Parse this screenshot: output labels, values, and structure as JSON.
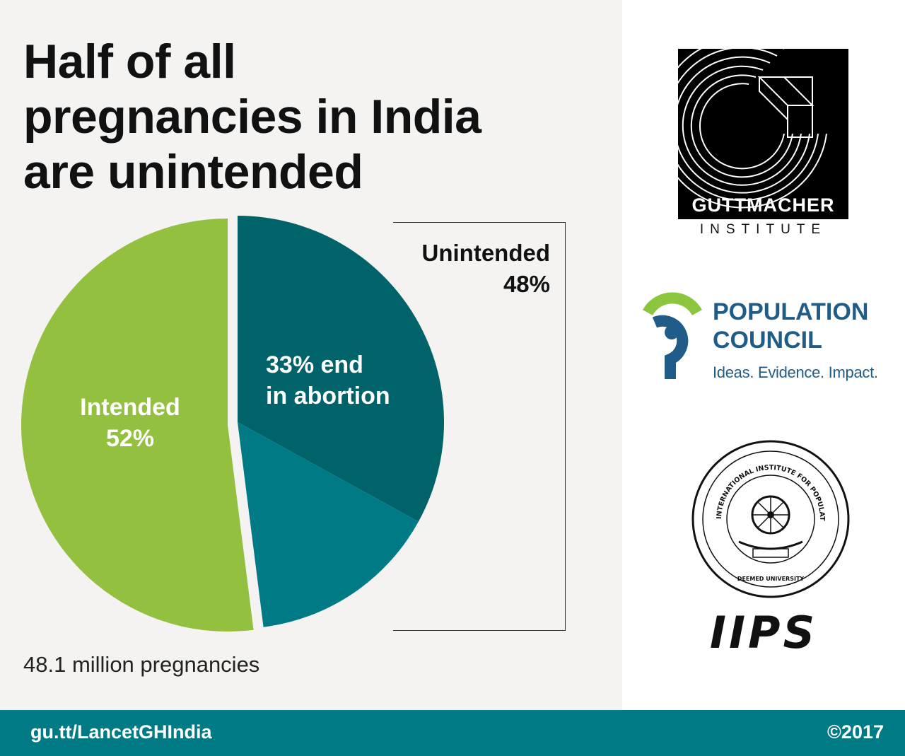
{
  "title_lines": [
    "Half of all",
    "pregnancies in India",
    "are unintended"
  ],
  "chart_data": {
    "type": "pie",
    "slices": [
      {
        "label": "Intended",
        "value": 52,
        "color": "#93c03f"
      },
      {
        "label": "Unintended, ending in abortion",
        "value": 33,
        "color": "#00636a"
      },
      {
        "label": "Unintended, other",
        "value": 15,
        "color": "#007b86"
      }
    ],
    "unintended_total": 48,
    "total_label": "48.1 million pregnancies"
  },
  "labels": {
    "unintended": "Unintended",
    "unintended_pct": "48%",
    "abortion_line1": "33% end",
    "abortion_line2": "in abortion",
    "intended": "Intended",
    "intended_pct": "52%"
  },
  "footnote": "48.1 million pregnancies",
  "footer": {
    "url": "gu.tt/LancetGHIndia",
    "copyright": "©2017",
    "color": "#007b86"
  },
  "logos": {
    "guttmacher_name": "GUTTMACHER",
    "guttmacher_sub": "INSTITUTE",
    "pc_line1": "POPULATION",
    "pc_line2": "COUNCIL",
    "pc_tagline": "Ideas. Evidence. Impact.",
    "iips_ring_text": "INTERNATIONAL INSTITUTE FOR POPULATION SCIENCES DEONAR MUMBAI",
    "iips_deemed": "DEEMED UNIVERSITY",
    "iips_acronym": "IIPS"
  }
}
